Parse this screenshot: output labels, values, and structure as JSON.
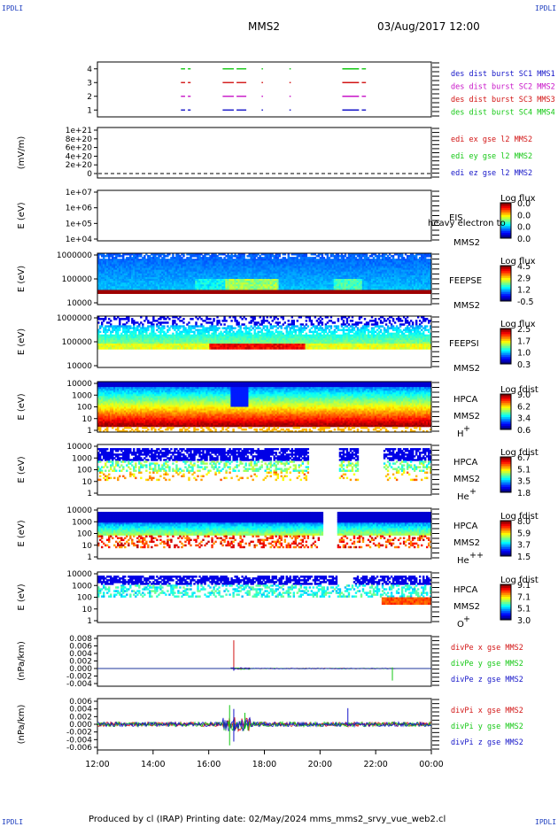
{
  "corners": {
    "tl": "IPDLI",
    "tr": "IPDLI",
    "bl": "IPDLI",
    "br": "IPDLI"
  },
  "header": {
    "spacecraft": "MMS2",
    "datetime": "03/Aug/2017 12:00"
  },
  "footer": {
    "text": "Produced by cl (IRAP)   Printing date: 02/May/2024   mms_mms2_srvy_vue_web2.cl"
  },
  "colors": {
    "blue": "#1414c8",
    "red": "#d21414",
    "green": "#14c814",
    "magenta": "#c814c8"
  },
  "chart_data": [
    {
      "type": "line",
      "panel": "burst",
      "ylim": [
        0.5,
        4.5
      ],
      "y_ticks": [
        "1",
        "2",
        "3",
        "4"
      ],
      "legend": [
        {
          "text": "des dist burst SC1 MMS1",
          "color": "#1414c8"
        },
        {
          "text": "des dist burst SC2 MMS2",
          "color": "#c814c8"
        },
        {
          "text": "des dist burst SC3 MMS3",
          "color": "#d21414"
        },
        {
          "text": "des dist burst SC4 MMS4",
          "color": "#14c814"
        }
      ],
      "segments_hours": [
        [
          15.0,
          15.15
        ],
        [
          15.25,
          15.35
        ],
        [
          16.5,
          16.9
        ],
        [
          17.0,
          17.35
        ],
        [
          17.9,
          17.95
        ],
        [
          18.9,
          18.95
        ],
        [
          20.8,
          21.4
        ],
        [
          21.5,
          21.65
        ]
      ],
      "series": [
        {
          "y": 4,
          "color": "#14c814"
        },
        {
          "y": 3,
          "color": "#d21414"
        },
        {
          "y": 2,
          "color": "#c814c8"
        },
        {
          "y": 1,
          "color": "#1414c8"
        }
      ]
    },
    {
      "type": "line",
      "panel": "edi",
      "ylabel": "(mV/m)",
      "ylim": [
        0,
        1e+21
      ],
      "y_ticks": [
        "1e+21",
        "8e+20",
        "6e+20",
        "4e+20",
        "2e+20",
        "0"
      ],
      "legend": [
        {
          "text": "edi ex gse l2 MMS2",
          "color": "#d21414"
        },
        {
          "text": "edi ey gse l2 MMS2",
          "color": "#14c814"
        },
        {
          "text": "edi ez gse l2 MMS2",
          "color": "#1414c8"
        }
      ]
    },
    {
      "type": "heatmap",
      "panel": "eis",
      "ylabel": "E (eV)",
      "y_ticks": [
        "1e+07",
        "1e+06",
        "1e+05",
        "1e+04"
      ],
      "instrument": "EIS",
      "overlay_text": "heavy electron to",
      "craft": "MMS2",
      "cbar_title": "Log flux",
      "cbar_values": [
        "0.0",
        "0.0",
        "0.0",
        "0.0"
      ]
    },
    {
      "type": "heatmap",
      "panel": "feepse",
      "ylabel": "E (eV)",
      "y_ticks": [
        "1000000",
        "100000",
        "10000"
      ],
      "instrument": "FEEPSE",
      "craft": "MMS2",
      "cbar_title": "Log flux",
      "cbar_values": [
        "4.5",
        "2.9",
        "1.2",
        "-0.5"
      ]
    },
    {
      "type": "heatmap",
      "panel": "feepsi",
      "ylabel": "E (eV)",
      "y_ticks": [
        "1000000",
        "100000",
        "10000"
      ],
      "instrument": "FEEPSI",
      "craft": "MMS2",
      "cbar_title": "Log flux",
      "cbar_values": [
        "2.5",
        "1.7",
        "1.0",
        "0.3"
      ]
    },
    {
      "type": "heatmap",
      "panel": "hpca_h",
      "ylabel": "E (eV)",
      "y_ticks": [
        "10000",
        "1000",
        "100",
        "10",
        "1"
      ],
      "instrument": "HPCA",
      "craft": "MMS2",
      "species": "H",
      "charge": "+",
      "cbar_title": "Log fdist",
      "cbar_values": [
        "9.0",
        "6.2",
        "3.4",
        "0.6"
      ]
    },
    {
      "type": "heatmap",
      "panel": "hpca_he",
      "ylabel": "E (eV)",
      "y_ticks": [
        "10000",
        "1000",
        "100",
        "10",
        "1"
      ],
      "instrument": "HPCA",
      "craft": "MMS2",
      "species": "He",
      "charge": "+",
      "cbar_title": "Log fdist",
      "cbar_values": [
        "6.7",
        "5.1",
        "3.5",
        "1.8"
      ]
    },
    {
      "type": "heatmap",
      "panel": "hpca_hepp",
      "ylabel": "E (eV)",
      "y_ticks": [
        "10000",
        "1000",
        "100",
        "10",
        "1"
      ],
      "instrument": "HPCA",
      "craft": "MMS2",
      "species": "He",
      "charge": "++",
      "cbar_title": "Log fdist",
      "cbar_values": [
        "8.0",
        "5.9",
        "3.7",
        "1.5"
      ]
    },
    {
      "type": "heatmap",
      "panel": "hpca_o",
      "ylabel": "E (eV)",
      "y_ticks": [
        "10000",
        "1000",
        "100",
        "10",
        "1"
      ],
      "instrument": "HPCA",
      "craft": "MMS2",
      "species": "O",
      "charge": "+",
      "cbar_title": "Log fdist",
      "cbar_values": [
        "9.1",
        "7.1",
        "5.1",
        "3.0"
      ]
    },
    {
      "type": "line",
      "panel": "divpe",
      "ylabel": "(nPa/km)",
      "ylim": [
        -0.004,
        0.008
      ],
      "y_ticks": [
        "0.008",
        "0.006",
        "0.004",
        "0.002",
        "0.000",
        "-0.002",
        "-0.004"
      ],
      "legend": [
        {
          "text": "divPe x gse MMS2",
          "color": "#d21414"
        },
        {
          "text": "divPe y gse MMS2",
          "color": "#14c814"
        },
        {
          "text": "divPe z gse MMS2",
          "color": "#1414c8"
        }
      ]
    },
    {
      "type": "line",
      "panel": "divpi",
      "ylabel": "(nPa/km)",
      "ylim": [
        -0.006,
        0.006
      ],
      "y_ticks": [
        "0.006",
        "0.004",
        "0.002",
        "0.000",
        "-0.002",
        "-0.004",
        "-0.006"
      ],
      "legend": [
        {
          "text": "divPi x gse MMS2",
          "color": "#d21414"
        },
        {
          "text": "divPi y gse MMS2",
          "color": "#14c814"
        },
        {
          "text": "divPi z gse MMS2",
          "color": "#1414c8"
        }
      ]
    }
  ],
  "time_axis": {
    "range_hours": [
      12,
      24
    ],
    "ticks": [
      "12:00",
      "14:00",
      "16:00",
      "18:00",
      "20:00",
      "22:00",
      "00:00"
    ]
  }
}
